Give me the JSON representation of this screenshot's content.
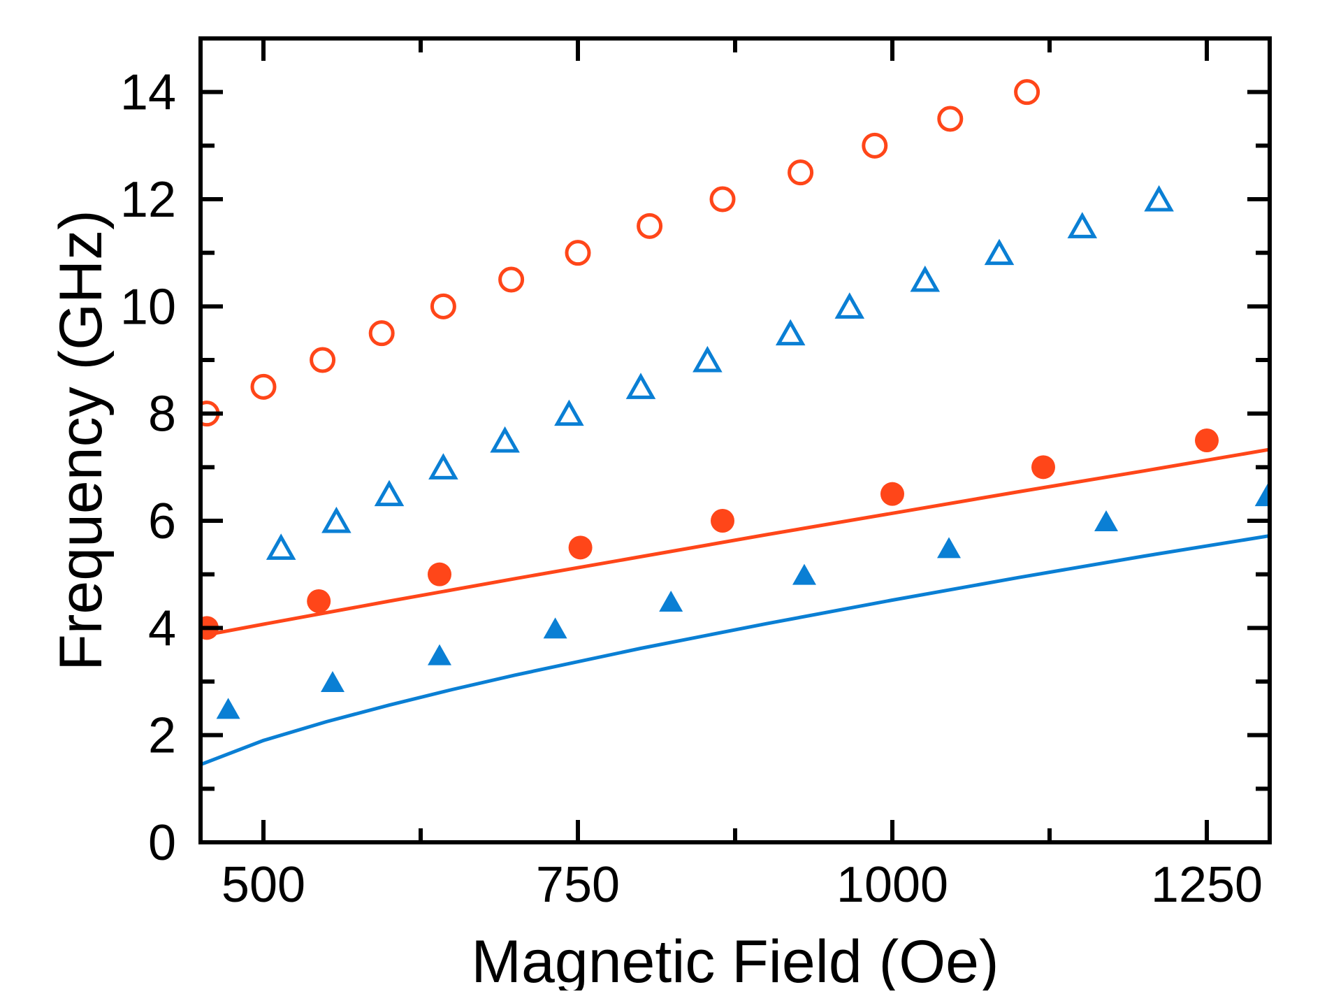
{
  "chart_data": {
    "type": "scatter",
    "title": "",
    "xlabel": "Magnetic Field (Oe)",
    "ylabel": "Frequency (GHz)",
    "xlim": [
      450,
      1300
    ],
    "ylim": [
      0,
      15
    ],
    "x_ticks": [
      500,
      750,
      1000,
      1250
    ],
    "x_tick_labels": [
      "500",
      "750",
      "1000",
      "1250"
    ],
    "x_minor_ticks": [
      625,
      875,
      1125
    ],
    "y_ticks": [
      0,
      2,
      4,
      6,
      8,
      10,
      12,
      14
    ],
    "y_tick_labels": [
      "0",
      "2",
      "4",
      "6",
      "8",
      "10",
      "12",
      "14"
    ],
    "y_minor_ticks": [
      1,
      3,
      5,
      7,
      9,
      11,
      13
    ],
    "grid": false,
    "legend": "none",
    "series": [
      {
        "name": "open-circles",
        "marker": "open-circle",
        "color": "#ff4619",
        "x": [
          455,
          500,
          547,
          594,
          643,
          697,
          750,
          807,
          865,
          927,
          986,
          1046,
          1107
        ],
        "y": [
          8,
          8.5,
          9,
          9.5,
          10,
          10.5,
          11,
          11.5,
          12,
          12.5,
          13,
          13.5,
          14
        ]
      },
      {
        "name": "open-triangles",
        "marker": "open-triangle",
        "color": "#0a7fd4",
        "x": [
          514,
          558,
          600,
          643,
          692,
          743,
          800,
          853,
          919,
          966,
          1026,
          1085,
          1151,
          1212,
          1300
        ],
        "y": [
          5.5,
          6,
          6.5,
          7,
          7.5,
          8,
          8.5,
          9,
          9.5,
          10,
          10.5,
          11,
          11.5,
          12,
          6.5
        ]
      },
      {
        "name": "filled-circles",
        "marker": "filled-circle",
        "color": "#ff4619",
        "x": [
          455,
          544,
          640,
          752,
          865,
          1000,
          1120,
          1250
        ],
        "y": [
          4,
          4.5,
          5,
          5.5,
          6,
          6.5,
          7,
          7.5
        ]
      },
      {
        "name": "filled-triangles",
        "marker": "filled-triangle",
        "color": "#0a7fd4",
        "x": [
          472,
          555,
          640,
          732,
          824,
          930,
          1045,
          1170,
          1300
        ],
        "y": [
          2.5,
          3,
          3.5,
          4,
          4.5,
          5,
          5.5,
          6,
          6.5
        ]
      },
      {
        "name": "red-line",
        "marker": "line",
        "color": "#ff4619",
        "x": [
          450,
          500,
          600,
          700,
          800,
          900,
          1000,
          1100,
          1200,
          1300
        ],
        "y": [
          3.85,
          4.07,
          4.5,
          4.92,
          5.33,
          5.74,
          6.14,
          6.54,
          6.93,
          7.33
        ]
      },
      {
        "name": "blue-line",
        "marker": "line",
        "color": "#0a7fd4",
        "x": [
          450,
          500,
          550,
          600,
          650,
          700,
          800,
          900,
          1000,
          1100,
          1200,
          1300
        ],
        "y": [
          1.45,
          1.9,
          2.25,
          2.56,
          2.85,
          3.12,
          3.62,
          4.08,
          4.52,
          4.94,
          5.34,
          5.72
        ]
      }
    ]
  }
}
